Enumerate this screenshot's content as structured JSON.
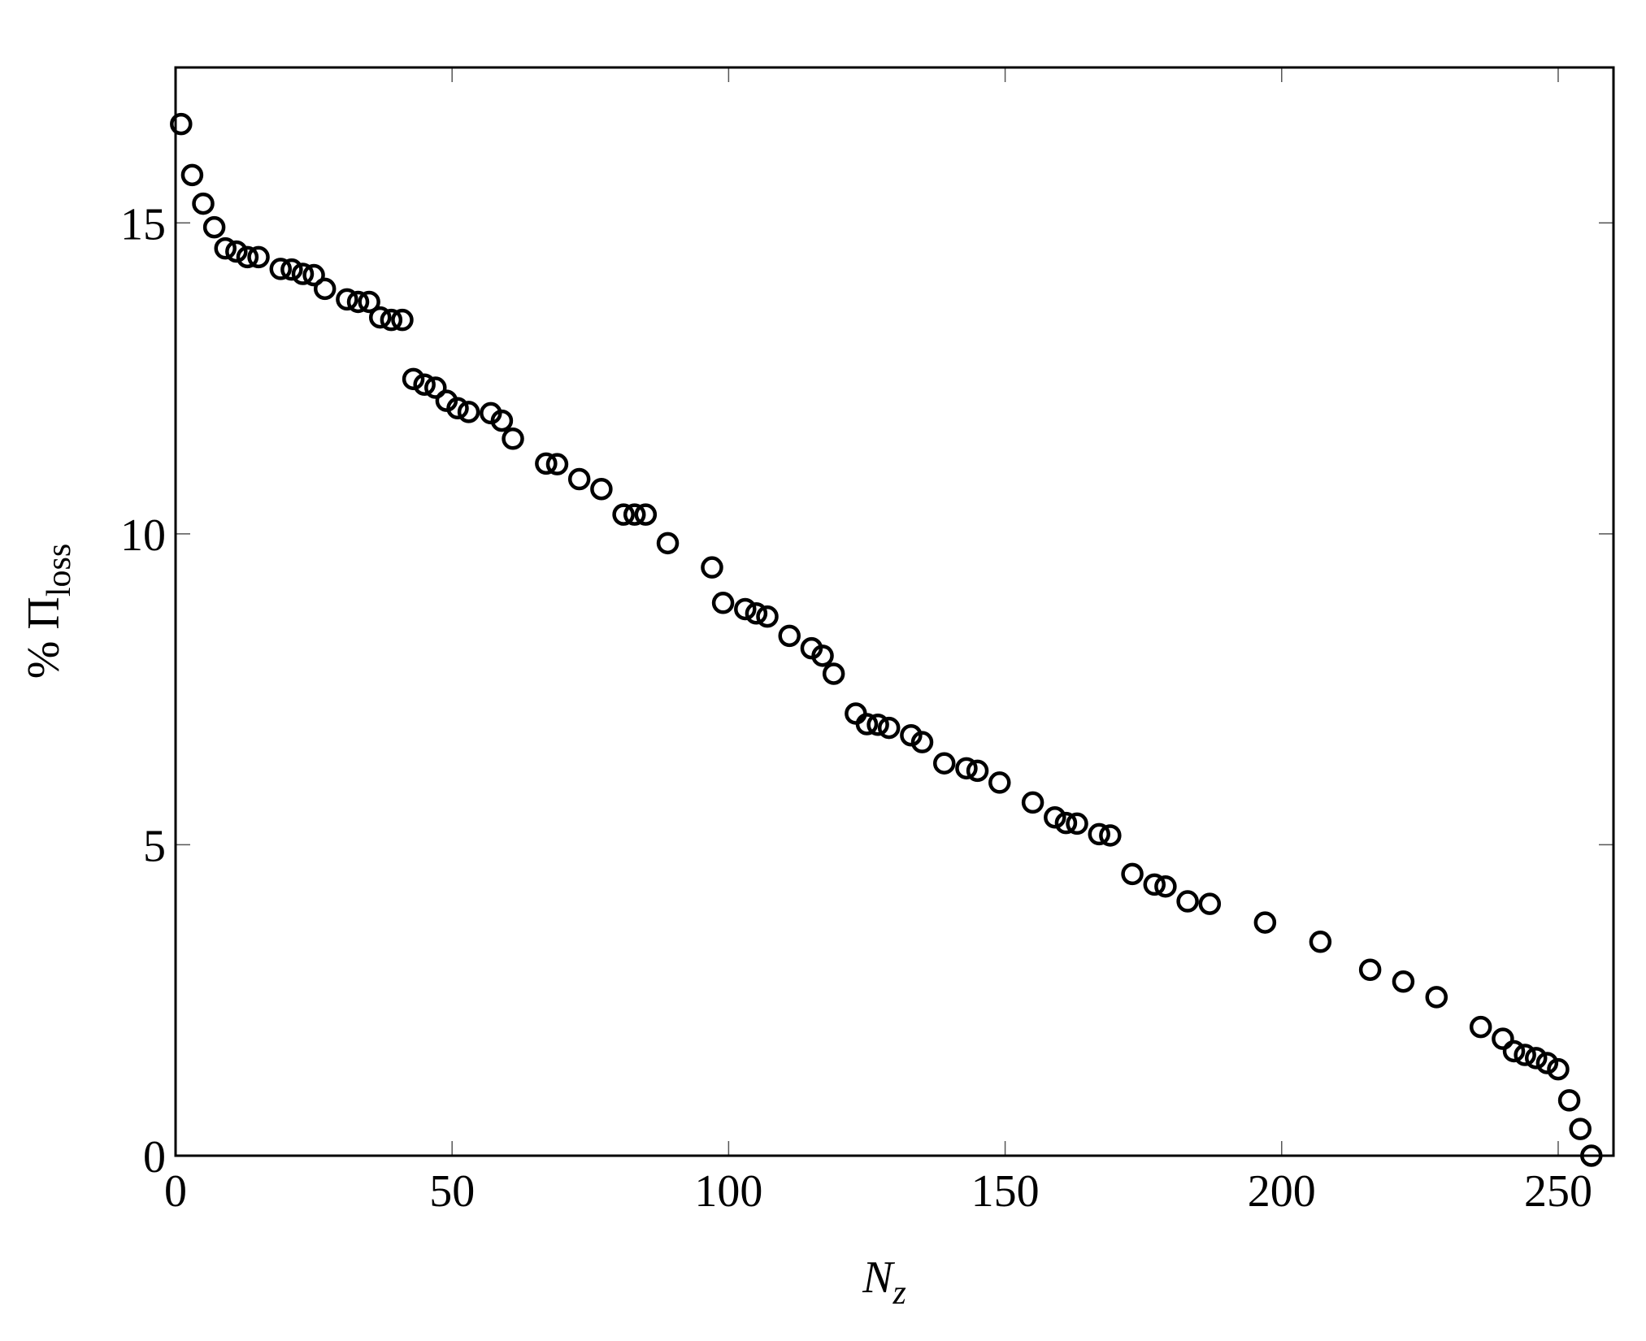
{
  "chart_data": {
    "type": "scatter",
    "x_label": {
      "main": "N",
      "sub": "z"
    },
    "y_label": {
      "main": "% Π",
      "sub": "loss"
    },
    "xlim": [
      0,
      260
    ],
    "ylim": [
      0,
      17.5
    ],
    "xticks": [
      0,
      50,
      100,
      150,
      200,
      250
    ],
    "yticks": [
      0,
      5,
      10,
      15
    ],
    "color": "#000000",
    "x": [
      1,
      3,
      5,
      7,
      9,
      11,
      13,
      15,
      19,
      21,
      23,
      25,
      27,
      31,
      33,
      35,
      37,
      39,
      41,
      43,
      45,
      47,
      49,
      51,
      53,
      57,
      59,
      61,
      67,
      69,
      73,
      77,
      81,
      83,
      85,
      89,
      97,
      99,
      103,
      105,
      107,
      111,
      115,
      117,
      119,
      123,
      125,
      127,
      129,
      133,
      135,
      139,
      143,
      145,
      149,
      155,
      159,
      161,
      163,
      167,
      169,
      173,
      177,
      179,
      183,
      187,
      197,
      207,
      216,
      222,
      228,
      236,
      240,
      242,
      244,
      246,
      248,
      250,
      252,
      254,
      256
    ],
    "y": [
      16.59,
      15.77,
      15.31,
      14.93,
      14.59,
      14.54,
      14.45,
      14.45,
      14.26,
      14.25,
      14.18,
      14.16,
      13.94,
      13.77,
      13.73,
      13.73,
      13.48,
      13.44,
      13.44,
      12.49,
      12.4,
      12.35,
      12.14,
      12.02,
      11.96,
      11.94,
      11.82,
      11.53,
      11.13,
      11.12,
      10.88,
      10.72,
      10.31,
      10.31,
      10.31,
      9.85,
      9.46,
      8.89,
      8.79,
      8.72,
      8.67,
      8.36,
      8.16,
      8.04,
      7.75,
      7.11,
      6.94,
      6.93,
      6.88,
      6.76,
      6.65,
      6.31,
      6.23,
      6.19,
      6.0,
      5.68,
      5.44,
      5.35,
      5.34,
      5.17,
      5.15,
      4.53,
      4.36,
      4.33,
      4.09,
      4.05,
      3.75,
      3.44,
      2.99,
      2.8,
      2.55,
      2.07,
      1.88,
      1.68,
      1.62,
      1.57,
      1.49,
      1.39,
      0.89,
      0.43,
      0
    ]
  }
}
